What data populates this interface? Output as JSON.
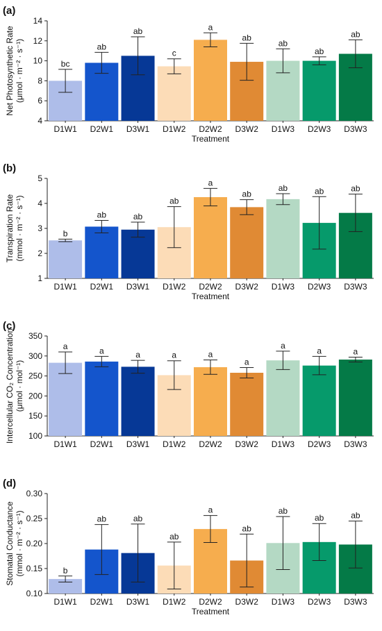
{
  "colors": [
    "#aebde9",
    "#1455cc",
    "#063896",
    "#fcdcb7",
    "#f6ad4e",
    "#e08a34",
    "#b4d9c4",
    "#069a6b",
    "#047a47"
  ],
  "chart_data": [
    {
      "type": "bar",
      "panel": "(a)",
      "xlabel": "Treatment",
      "ylabel": [
        "Net Photosynthetic Rate",
        "(μmol · m⁻² · s⁻¹)"
      ],
      "ylim": [
        4,
        14
      ],
      "yticks": [
        "4",
        "6",
        "8",
        "10",
        "12",
        "14"
      ],
      "categories": [
        "D1W1",
        "D2W1",
        "D3W1",
        "D1W2",
        "D2W2",
        "D3W2",
        "D1W3",
        "D2W3",
        "D3W3"
      ],
      "values": [
        8.0,
        9.8,
        10.5,
        9.45,
        12.1,
        9.9,
        10.0,
        10.0,
        10.7
      ],
      "errors": [
        1.15,
        1.05,
        1.9,
        0.75,
        0.7,
        1.85,
        1.2,
        0.4,
        1.4
      ],
      "labels": [
        "bc",
        "ab",
        "ab",
        "c",
        "a",
        "ab",
        "ab",
        "ab",
        "ab"
      ],
      "grid": false
    },
    {
      "type": "bar",
      "panel": "(b)",
      "xlabel": "Treatment",
      "ylabel": [
        "Transpiration Rate",
        "(mmol · m⁻² · s⁻¹)"
      ],
      "ylim": [
        1,
        5
      ],
      "yticks": [
        "1",
        "2",
        "3",
        "4",
        "5"
      ],
      "categories": [
        "D1W1",
        "D2W1",
        "D3W1",
        "D1W2",
        "D2W2",
        "D3W2",
        "D1W3",
        "D2W3",
        "D3W3"
      ],
      "values": [
        2.52,
        3.07,
        2.95,
        3.05,
        4.25,
        3.85,
        4.17,
        3.22,
        3.62
      ],
      "errors": [
        0.05,
        0.25,
        0.3,
        0.82,
        0.35,
        0.3,
        0.22,
        1.05,
        0.75
      ],
      "labels": [
        "b",
        "ab",
        "ab",
        "ab",
        "a",
        "ab",
        "ab",
        "ab",
        "ab"
      ],
      "grid": false
    },
    {
      "type": "bar",
      "panel": "(c)",
      "xlabel": "",
      "ylabel": [
        "Intercellular CO₂ Concentration",
        "(μmol · mol⁻¹)"
      ],
      "ylim": [
        100,
        350
      ],
      "yticks": [
        "100",
        "150",
        "200",
        "250",
        "300",
        "350"
      ],
      "categories": [
        "D1W1",
        "D2W1",
        "D3W1",
        "D1W2",
        "D2W2",
        "D3W2",
        "D1W3",
        "D2W3",
        "D3W3"
      ],
      "values": [
        283,
        286,
        273,
        252,
        272,
        258,
        289,
        276,
        291
      ],
      "errors": [
        27,
        13,
        16,
        36,
        18,
        13,
        23,
        23,
        6
      ],
      "labels": [
        "a",
        "a",
        "a",
        "a",
        "a",
        "a",
        "a",
        "a",
        "a"
      ],
      "grid": false
    },
    {
      "type": "bar",
      "panel": "(d)",
      "xlabel": "Treatment",
      "ylabel": [
        "Stomatal Conductance",
        "(mmol · m⁻² · s⁻¹)"
      ],
      "ylim": [
        0.1,
        0.3
      ],
      "yticks": [
        "0.10",
        "0.15",
        "0.20",
        "0.25",
        "0.30"
      ],
      "categories": [
        "D1W1",
        "D2W1",
        "D3W1",
        "D1W2",
        "D2W2",
        "D3W2",
        "D1W3",
        "D2W3",
        "D3W3"
      ],
      "values": [
        0.129,
        0.188,
        0.181,
        0.156,
        0.229,
        0.166,
        0.201,
        0.203,
        0.198
      ],
      "errors": [
        0.006,
        0.05,
        0.058,
        0.047,
        0.027,
        0.053,
        0.053,
        0.037,
        0.047
      ],
      "labels": [
        "b",
        "ab",
        "ab",
        "ab",
        "a",
        "ab",
        "ab",
        "ab",
        "ab"
      ],
      "grid": false
    }
  ]
}
